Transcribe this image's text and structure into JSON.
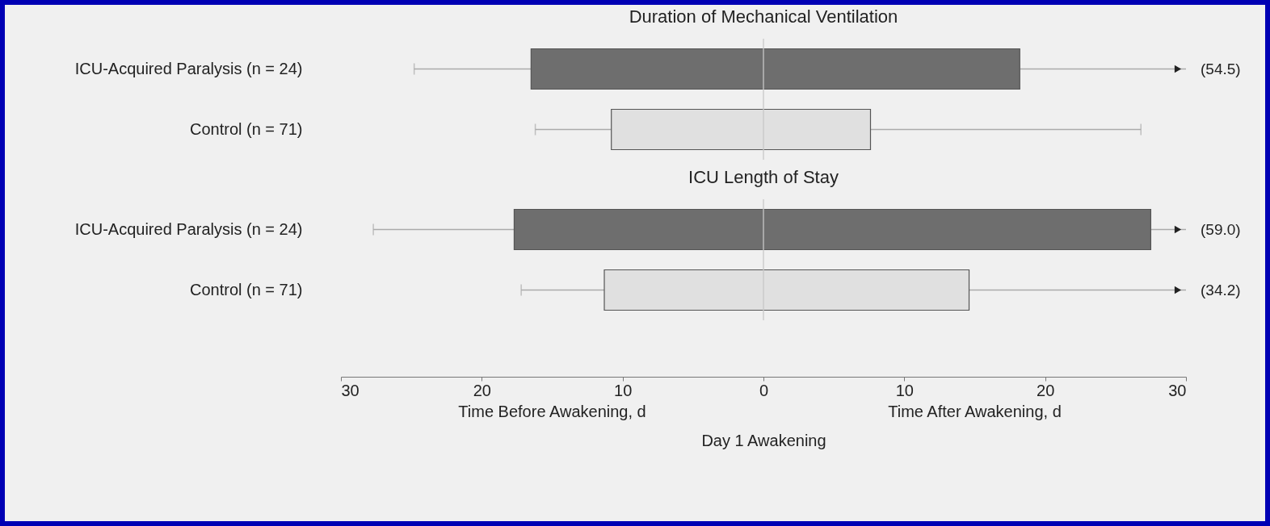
{
  "chart_data": [
    {
      "type": "bar",
      "orientation": "horizontal",
      "title": "Duration of Mechanical Ventilation",
      "categories": [
        "ICU-Acquired Paralysis (n = 24)",
        "Control (n = 71)"
      ],
      "series": [
        {
          "color": "#aaaaaa",
          "base": [
            -24.8,
            -16.2
          ],
          "values": [
            8.3,
            5.4
          ]
        },
        {
          "colors": [
            "#6e6e6e",
            "#e0e0e0"
          ],
          "base": [
            -16.5,
            -10.8
          ],
          "values": [
            34.7,
            18.4
          ]
        },
        {
          "color": "#aaaaaa",
          "base": [
            18.2,
            7.6
          ],
          "values": [
            11.8,
            19.2
          ]
        }
      ],
      "xlim": [
        -30,
        30
      ],
      "tick_labels": "y",
      "ref_lines": [
        {
          "axis": "x",
          "value": 0,
          "color": "#c8c8c8"
        }
      ],
      "annotations": [
        "(54.5)"
      ]
    },
    {
      "type": "bar",
      "orientation": "horizontal",
      "title": "ICU Length of Stay",
      "categories": [
        "ICU-Acquired Paralysis (n = 24)",
        "Control (n = 71)"
      ],
      "series": [
        {
          "color": "#aaaaaa",
          "base": [
            -27.7,
            -17.2
          ],
          "values": [
            10.0,
            5.9
          ]
        },
        {
          "colors": [
            "#6e6e6e",
            "#e0e0e0"
          ],
          "base": [
            -17.7,
            -11.3
          ],
          "values": [
            45.2,
            25.9
          ]
        },
        {
          "color": "#aaaaaa",
          "base": [
            27.5,
            14.6
          ],
          "values": [
            2.5,
            15.4
          ]
        }
      ],
      "xlim": [
        -30,
        30
      ],
      "xticks": [
        {
          "value": -30,
          "label": "30"
        },
        {
          "value": -20,
          "label": "20"
        },
        {
          "value": -10,
          "label": "10"
        },
        0,
        10,
        20,
        30
      ],
      "xlabel": "Day 1 Awakening",
      "ref_lines": [
        {
          "axis": "x",
          "value": 0,
          "color": "#c8c8c8"
        }
      ],
      "annotations": [
        "Time Before Awakening, d",
        "Time After Awakening, d",
        "(59.0)",
        "(34.2)"
      ]
    }
  ]
}
